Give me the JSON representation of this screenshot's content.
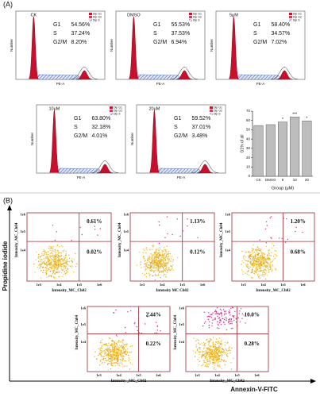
{
  "figure": {
    "panel_a_label": "(A)",
    "histograms": [
      {
        "name": "CK",
        "rows": [
          {
            "phase": "G1",
            "value": "54.56%"
          },
          {
            "phase": "S",
            "value": "37.24%"
          },
          {
            "phase": "G2/M",
            "value": "8.20%"
          }
        ]
      },
      {
        "name": "DMSO",
        "rows": [
          {
            "phase": "G1",
            "value": "55.53%"
          },
          {
            "phase": "S",
            "value": "37.53%"
          },
          {
            "phase": "G2/M",
            "value": "6.94%"
          }
        ]
      },
      {
        "name": "5μM",
        "rows": [
          {
            "phase": "G1",
            "value": "58.40%"
          },
          {
            "phase": "S",
            "value": "34.57%"
          },
          {
            "phase": "G2/M",
            "value": "7.02%"
          }
        ]
      },
      {
        "name": "10μM",
        "rows": [
          {
            "phase": "G1",
            "value": "63.80%"
          },
          {
            "phase": "S",
            "value": "32.18%"
          },
          {
            "phase": "G2/M",
            "value": "4.01%"
          }
        ]
      },
      {
        "name": "20μM",
        "rows": [
          {
            "phase": "G1",
            "value": "59.52%"
          },
          {
            "phase": "S",
            "value": "37.01%"
          },
          {
            "phase": "G2/M",
            "value": "3.48%"
          }
        ]
      }
    ],
    "histogram_x_label": "PE-A",
    "histogram_y_label": "Number",
    "histogram_legend": [
      "Dip G1",
      "Dip G2",
      "Dip S"
    ],
    "panel_b_label": "(B)",
    "scatter_plots": [
      {
        "upper_right": "0.61%",
        "lower_right": "0.02%",
        "x_label": "Intensity_MC_Ch02",
        "y_label": "Intensity_MC_Ch04"
      },
      {
        "upper_right": "1.13%",
        "lower_right": "0.12%",
        "x_label": "Intensity MC Ch02",
        "y_label": "Intensity_MC_Ch04"
      },
      {
        "upper_right": "1.20%",
        "lower_right": "0.68%",
        "x_label": "Intensity_MC_Ch02",
        "y_label": "Intensity_MC_Ch04"
      },
      {
        "upper_right": "2.44%",
        "lower_right": "0.22%",
        "x_label": "Intensity _MC_Ch02",
        "y_label": "Intensity_MC_Ch04"
      },
      {
        "upper_right": "10.0%",
        "lower_right": "0.28%",
        "x_label": "Intensity_MC_Ch02",
        "y_label": "Intensity_MC_Ch04"
      }
    ],
    "scatter_x_ticks": [
      "1e3",
      "1e4",
      "1e5",
      "1e6"
    ],
    "scatter_y_ticks": [
      "1e4",
      "1e5",
      "1e6"
    ],
    "y_axis_title": "Propidine iodide",
    "x_axis_title": "Annexin-V-FITC"
  },
  "chart_data": {
    "type": "bar",
    "categories": [
      "CK",
      "DMSO",
      "5",
      "10",
      "20"
    ],
    "values": [
      54.56,
      55.53,
      58.4,
      63.8,
      59.52
    ],
    "annotations": [
      null,
      null,
      "*",
      "***",
      "*"
    ],
    "color": "#bdbdbd",
    "ylim": [
      0,
      70
    ],
    "yticks": [
      0,
      10,
      20,
      30,
      40,
      50,
      60,
      70
    ],
    "y_label": "G1% of all",
    "x_label": "Group (μM)"
  }
}
